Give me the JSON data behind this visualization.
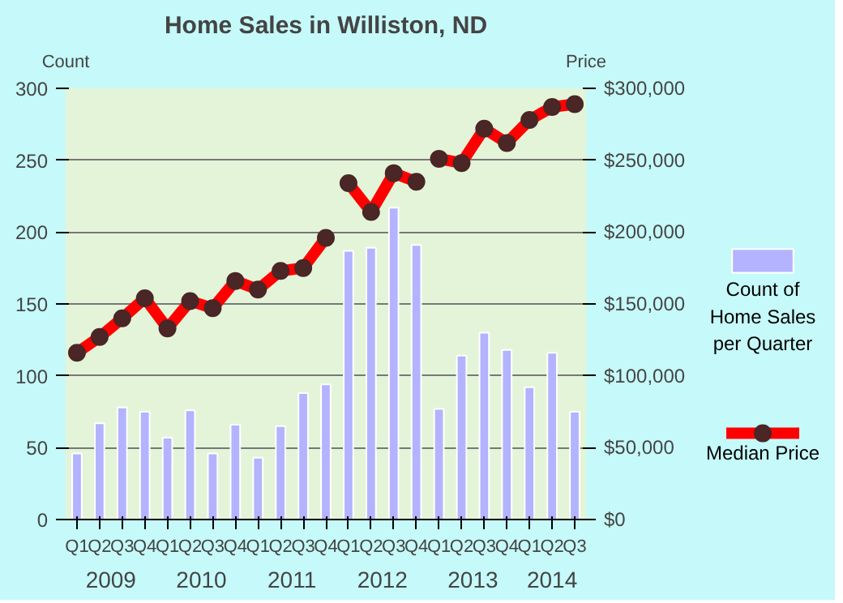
{
  "chart_data": {
    "type": "bar",
    "title": "Home Sales in Williston, ND",
    "ylabel": "Count",
    "y2label": "Price",
    "categories": [
      "Q1",
      "Q2",
      "Q3",
      "Q4",
      "Q1",
      "Q2",
      "Q3",
      "Q4",
      "Q1",
      "Q2",
      "Q3",
      "Q4",
      "Q1",
      "Q2",
      "Q3",
      "Q4",
      "Q1",
      "Q2",
      "Q3",
      "Q4",
      "Q1",
      "Q2",
      "Q3"
    ],
    "annotations": [
      "2009",
      "2010",
      "2011",
      "2012",
      "2013",
      "2014"
    ],
    "series": [
      {
        "name": "Count of Home Sales per Quarter",
        "color": "#b3b3ff",
        "values": [
          46,
          67,
          78,
          75,
          57,
          76,
          46,
          66,
          43,
          65,
          88,
          94,
          187,
          189,
          217,
          191,
          77,
          114,
          130,
          118,
          92,
          116,
          75
        ]
      },
      {
        "name": "Median Price",
        "type": "line",
        "axis": "y2",
        "color": "#ff0000",
        "marker": "circle",
        "values": [
          116000,
          127000,
          140000,
          154000,
          133000,
          152000,
          147000,
          166000,
          160000,
          173000,
          175000,
          196000,
          null,
          null,
          null,
          null,
          null,
          null,
          null,
          null,
          null,
          null,
          null
        ]
      },
      {
        "type": "line",
        "axis": "y2",
        "color": "#ff0000",
        "marker": "circle",
        "values": [
          null,
          null,
          null,
          null,
          null,
          null,
          null,
          null,
          null,
          null,
          null,
          null,
          234000,
          214000,
          241000,
          235000,
          null,
          null,
          null,
          null,
          null,
          null,
          null
        ]
      },
      {
        "type": "line",
        "axis": "y2",
        "color": "#ff0000",
        "marker": "circle",
        "values": [
          null,
          null,
          null,
          null,
          null,
          null,
          null,
          null,
          null,
          null,
          null,
          null,
          null,
          null,
          null,
          null,
          251000,
          248000,
          272000,
          262000,
          278000,
          287000,
          289000
        ]
      }
    ],
    "ylim": [
      0,
      300
    ],
    "yticks": [
      0,
      50,
      100,
      150,
      200,
      250,
      300
    ],
    "y2lim": [
      0,
      300000
    ],
    "y2ticks": [
      {
        "value": 0,
        "label": "$0"
      },
      {
        "value": 50000,
        "label": "$50,000"
      },
      {
        "value": 100000,
        "label": "$100,000"
      },
      {
        "value": 150000,
        "label": "$150,000"
      },
      {
        "value": 200000,
        "label": "$200,000"
      },
      {
        "value": 250000,
        "label": "$250,000"
      },
      {
        "value": 300000,
        "label": "$300,000"
      }
    ],
    "grid": "y",
    "legend": "right"
  }
}
